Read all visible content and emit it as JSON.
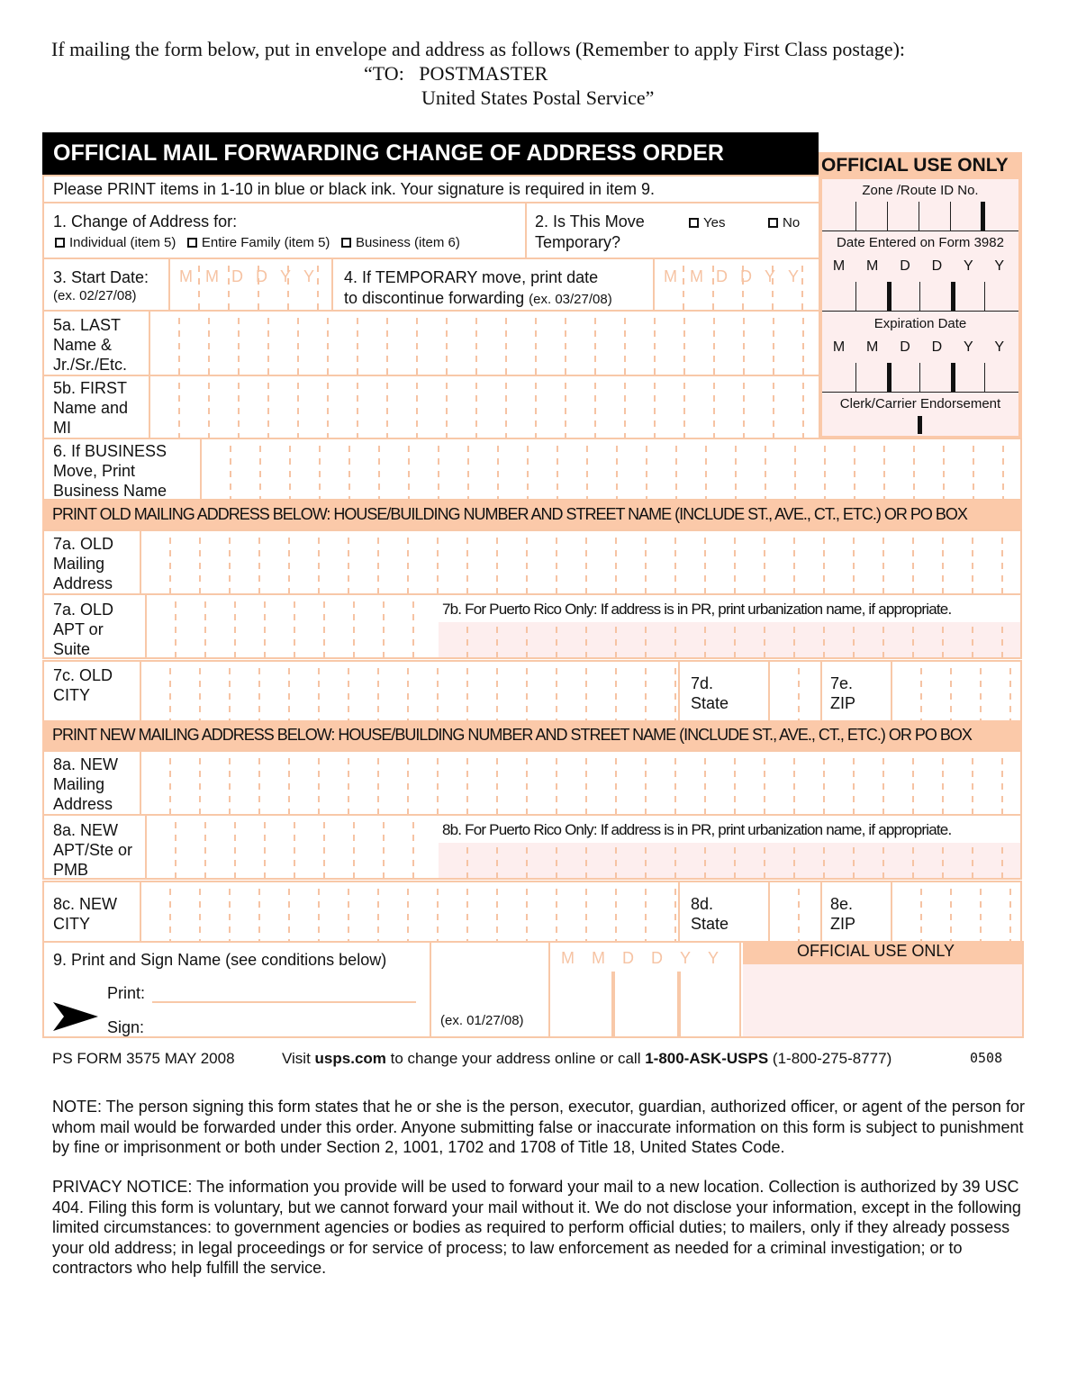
{
  "mailing": {
    "line1": "If mailing the form below, put in envelope and address as follows (Remember to apply First Class postage):",
    "line2": "“TO:   POSTMASTER",
    "line3": "United States Postal Service”"
  },
  "form": {
    "title": "OFFICIAL MAIL FORWARDING CHANGE OF ADDRESS ORDER",
    "instruction": "Please PRINT items in 1-10 in blue or black ink. Your signature is required in item 9.",
    "item1": {
      "label": "1. Change of Address for:",
      "options": [
        "Individual (item 5)",
        "Entire Family (item 5)",
        "Business (item 6)"
      ]
    },
    "item2": {
      "label1": "2. Is This Move",
      "label2": "Temporary?",
      "yes": "Yes",
      "no": "No"
    },
    "item3": {
      "label": "3. Start Date:",
      "example": "(ex. 02/27/08)"
    },
    "item4": {
      "line1": "4.  If TEMPORARY move,  print date",
      "line2": "to discontinue forwarding",
      "example": "(ex. 03/27/08)"
    },
    "date_placeholder": [
      "M",
      "M",
      "D",
      "D",
      "Y",
      "Y"
    ],
    "item5a": "5a. LAST Name & Jr./Sr./Etc.",
    "item5b": "5b. FIRST Name and MI",
    "item6": "6. If BUSINESS Move, Print Business Name",
    "old_band": "PRINT OLD MAILING ADDRESS BELOW:  HOUSE/BUILDING NUMBER AND STREET NAME (INCLUDE ST., AVE., CT., ETC.) OR PO BOX",
    "item7a": "7a. OLD Mailing Address",
    "item7a_apt": "7a. OLD APT or Suite",
    "item7b": "7b. For Puerto Rico Only:  If address is in PR, print urbanization name, if appropriate.",
    "item7c": "7c. OLD CITY",
    "item7d": "7d. State",
    "item7e": "7e. ZIP",
    "new_band": "PRINT NEW MAILING ADDRESS BELOW:  HOUSE/BUILDING NUMBER AND STREET NAME (INCLUDE ST., AVE., CT., ETC.) OR PO BOX",
    "item8a": "8a. NEW Mailing Address",
    "item8a_apt": "8a. NEW APT/Ste or PMB",
    "item8b": "8b. For Puerto Rico Only:  If address is in PR, print urbanization name, if appropriate.",
    "item8c": "8c. NEW CITY",
    "item8d": "8d. State",
    "item8e": "8e. ZIP",
    "item9": {
      "label": "9. Print and Sign Name (see conditions below)",
      "print": "Print:",
      "sign": "Sign:",
      "example": "(ex. 01/27/08)"
    },
    "official_bottom": "OFFICIAL USE ONLY"
  },
  "official": {
    "title": "OFFICIAL USE ONLY",
    "zone": "Zone /Route ID No.",
    "date_entered": "Date Entered on Form 3982",
    "expiration": "Expiration Date",
    "endorsement": "Clerk/Carrier Endorsement",
    "letters": [
      "M",
      "M",
      "D",
      "D",
      "Y",
      "Y"
    ]
  },
  "footer": {
    "form_id": "PS FORM 3575 MAY 2008",
    "visit": "Visit ",
    "site": "usps.com",
    "mid": " to change your address online or call ",
    "phone_name": "1-800-ASK-USPS",
    "phone_num": " (1-800-275-8777)",
    "code": "0508"
  },
  "note": "NOTE:  The person signing this form states that he or she is the person, executor, guardian, authorized officer, or agent of the person for whom mail would be forwarded under this order. Anyone submitting false or inaccurate information on this form is subject to punishment by fine or imprisonment or both under Section 2, 1001, 1702 and 1708 of Title 18, United States Code.",
  "privacy": "PRIVACY NOTICE:  The information you provide will be used to forward your mail to a new location. Collection is authorized by 39 USC 404. Filing this form is voluntary, but we cannot forward your mail without it. We do not disclose your information, except in the following limited circumstances:  to government agencies or bodies as required to perform official duties; to mailers, only if they already possess your old address; in legal proceedings or for service of process; to law enforcement as needed for a criminal investigation; or to contractors who help fulfill the service."
}
